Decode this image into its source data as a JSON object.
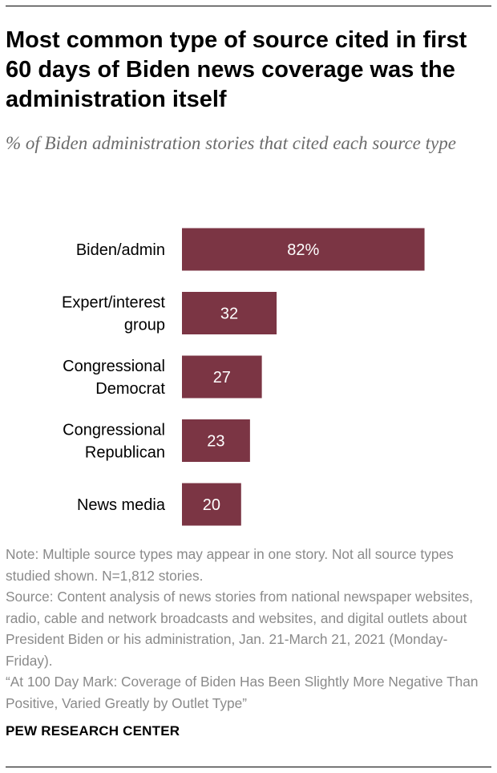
{
  "title": "Most common type of source cited in first 60 days of Biden news coverage was the administration itself",
  "subtitle": "% of Biden administration stories that cited each source type",
  "colors": {
    "bar": "#7b3544",
    "bar_label": "#ffffff",
    "category_label": "#000000",
    "note": "#8a8a8a"
  },
  "chart_data": {
    "type": "bar",
    "orientation": "horizontal",
    "categories": [
      [
        "Biden/admin"
      ],
      [
        "Expert/interest",
        "group"
      ],
      [
        "Congressional",
        "Democrat"
      ],
      [
        "Congressional",
        "Republican"
      ],
      [
        "News media"
      ]
    ],
    "values": [
      82,
      32,
      27,
      23,
      20
    ],
    "value_labels": [
      "82%",
      "32",
      "27",
      "23",
      "20"
    ],
    "xlim": [
      0,
      100
    ],
    "title": "Most common type of source cited in first 60 days of Biden news coverage was the administration itself",
    "xlabel": "",
    "ylabel": "",
    "grid": false
  },
  "notes": {
    "note": "Note: Multiple source types may appear in one story. Not all source types studied shown. N=1,812 stories.",
    "source": "Source: Content analysis of news stories from national newspaper websites, radio, cable and network broadcasts and websites, and digital outlets about President Biden or his administration, Jan. 21-March 21, 2021 (Monday-Friday).",
    "report": "“At 100 Day Mark: Coverage of Biden Has Been Slightly More Negative Than Positive, Varied Greatly by Outlet Type”"
  },
  "brand": "PEW RESEARCH CENTER"
}
